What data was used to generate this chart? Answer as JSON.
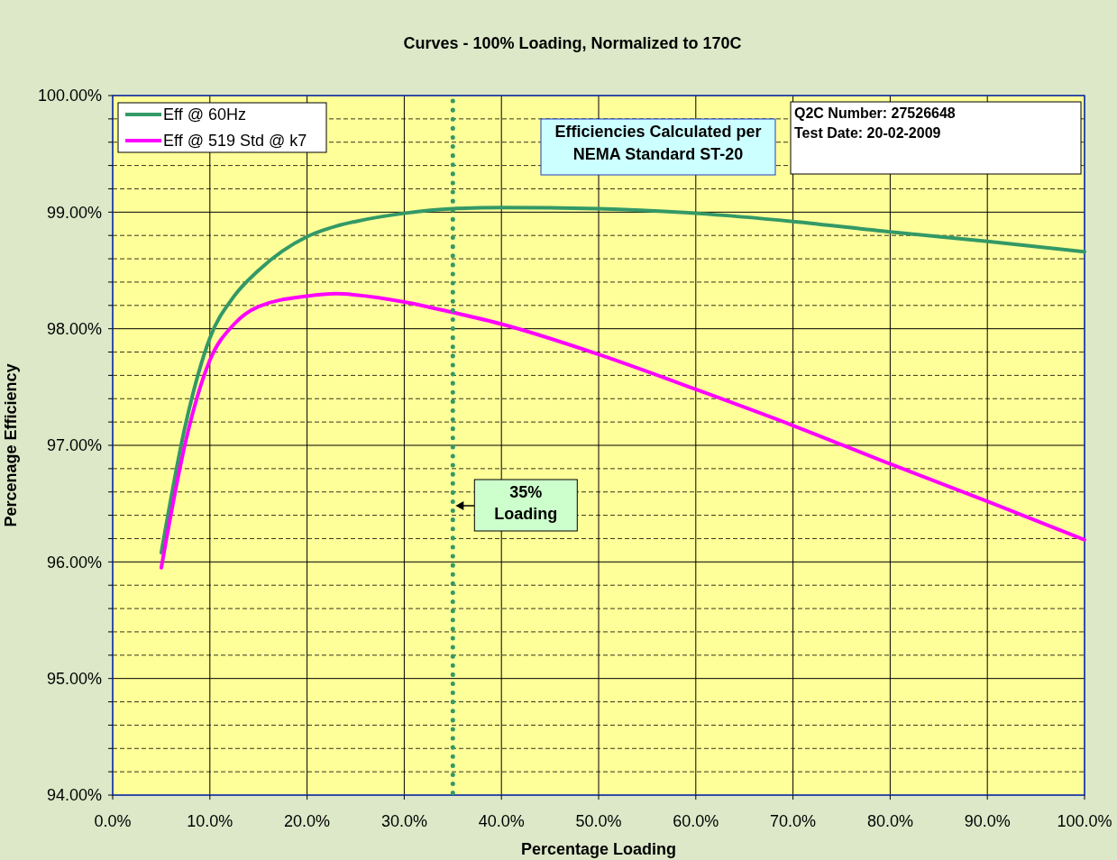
{
  "chart_data": {
    "type": "line",
    "title": "Curves - 100% Loading, Normalized to 170C",
    "xlabel": "Percentage Loading",
    "ylabel": "Percenage Efficiency",
    "x": [
      5,
      7.5,
      10,
      12.5,
      15,
      20,
      23,
      25,
      30,
      35,
      40,
      50,
      60,
      70,
      80,
      90,
      100
    ],
    "series": [
      {
        "name": "Eff @ 60Hz",
        "color": "#339966",
        "values": [
          96.08,
          97.18,
          97.92,
          98.28,
          98.5,
          98.79,
          98.88,
          98.92,
          98.99,
          99.03,
          99.04,
          99.03,
          98.99,
          98.92,
          98.83,
          98.75,
          98.66
        ]
      },
      {
        "name": "Eff @ 519 Std @ k7",
        "color": "#ff00ff",
        "values": [
          95.95,
          97.03,
          97.73,
          98.04,
          98.19,
          98.28,
          98.3,
          98.29,
          98.23,
          98.14,
          98.04,
          97.78,
          97.48,
          97.17,
          96.84,
          96.52,
          96.19
        ]
      }
    ],
    "xlim": [
      0,
      100
    ],
    "xticks": [
      {
        "value": 0,
        "label": "0.0%"
      },
      {
        "value": 10,
        "label": "10.0%"
      },
      {
        "value": 20,
        "label": "20.0%"
      },
      {
        "value": 30,
        "label": "30.0%"
      },
      {
        "value": 40,
        "label": "40.0%"
      },
      {
        "value": 50,
        "label": "50.0%"
      },
      {
        "value": 60,
        "label": "60.0%"
      },
      {
        "value": 70,
        "label": "70.0%"
      },
      {
        "value": 80,
        "label": "80.0%"
      },
      {
        "value": 90,
        "label": "90.0%"
      },
      {
        "value": 100,
        "label": "100.0%"
      }
    ],
    "ylim": [
      94,
      100
    ],
    "yticks": [
      {
        "value": 94,
        "label": "94.00%"
      },
      {
        "value": 94.2,
        "label": null
      },
      {
        "value": 94.4,
        "label": null
      },
      {
        "value": 94.6,
        "label": null
      },
      {
        "value": 94.8,
        "label": null
      },
      {
        "value": 95,
        "label": "95.00%"
      },
      {
        "value": 95.2,
        "label": null
      },
      {
        "value": 95.4,
        "label": null
      },
      {
        "value": 95.6,
        "label": null
      },
      {
        "value": 95.8,
        "label": null
      },
      {
        "value": 96,
        "label": "96.00%"
      },
      {
        "value": 96.2,
        "label": null
      },
      {
        "value": 96.4,
        "label": null
      },
      {
        "value": 96.6,
        "label": null
      },
      {
        "value": 96.8,
        "label": null
      },
      {
        "value": 97,
        "label": "97.00%"
      },
      {
        "value": 97.2,
        "label": null
      },
      {
        "value": 97.4,
        "label": null
      },
      {
        "value": 97.6,
        "label": null
      },
      {
        "value": 97.8,
        "label": null
      },
      {
        "value": 98,
        "label": "98.00%"
      },
      {
        "value": 98.2,
        "label": null
      },
      {
        "value": 98.4,
        "label": null
      },
      {
        "value": 98.6,
        "label": null
      },
      {
        "value": 98.8,
        "label": null
      },
      {
        "value": 99,
        "label": "99.00%"
      },
      {
        "value": 99.2,
        "label": null
      },
      {
        "value": 99.4,
        "label": null
      },
      {
        "value": 99.6,
        "label": null
      },
      {
        "value": 99.8,
        "label": null
      },
      {
        "value": 100,
        "label": "100.00%"
      }
    ],
    "grid": true,
    "legend": "top left",
    "ref_lines": [
      {
        "axis": "x",
        "value": 35,
        "label": "35% Loading",
        "color": "#339966",
        "line_style": "dotted"
      }
    ],
    "annotations": [
      "Efficiencies Calculated per NEMA Standard ST-20",
      "Q2C Number:  27526648",
      "Test Date:  20-02-2009"
    ]
  }
}
